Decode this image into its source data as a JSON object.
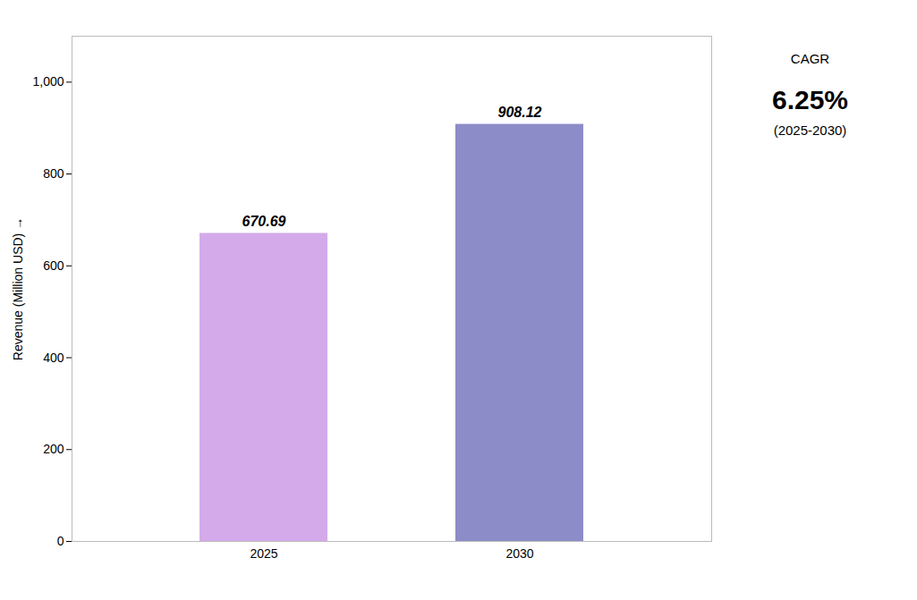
{
  "chart_data": {
    "type": "bar",
    "categories": [
      "2025",
      "2030"
    ],
    "values": [
      670.69,
      908.12
    ],
    "colors": [
      "#D4AAEB",
      "#8C8CC8"
    ],
    "ylabel": "Revenue (Million USD)",
    "ylim": [
      0,
      1100
    ],
    "yticks": [
      0,
      200,
      400,
      600,
      800,
      {
        "value": 1000,
        "label": "1,000"
      }
    ],
    "data_labels": true,
    "grid": false,
    "annotations": [
      "CAGR",
      "6.25%",
      "(2025-2030)"
    ]
  }
}
